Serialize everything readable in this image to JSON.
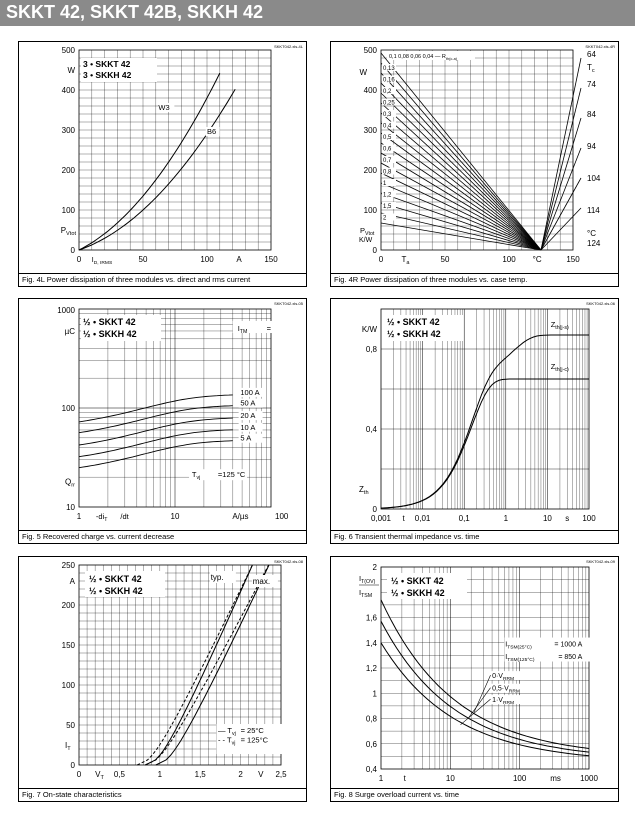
{
  "header": {
    "title": "SKKT 42, SKKT 42B, SKKH 42"
  },
  "panels": [
    {
      "id": "p4l",
      "caption": "Fig. 4L Power dissipation of three modules vs. direct and rms current",
      "file": "SKKT042.xls-4L",
      "legend": [
        "3 • SKKT 42",
        "3 • SKKH 42"
      ],
      "ylabel_unit": "W",
      "ylabel_sym": "P",
      "ylabel_sub": "Vtot",
      "xlabel_sym": "I",
      "xlabel_sub": "D, IRMS",
      "xlabel_unit": "A",
      "xticks": [
        "0",
        "50",
        "100",
        "150"
      ],
      "yticks": [
        "0",
        "100",
        "200",
        "300",
        "400",
        "500"
      ]
    },
    {
      "id": "p4r",
      "caption": "Fig. 4R Power dissipation of three modules vs. case temp.",
      "file": "SKKT042.xls-4R",
      "ylabel_unit": "W",
      "ylabel_sym": "P",
      "ylabel_sub": "Vtot",
      "ylabel_unit2": "K/W",
      "xlabel_sym": "T",
      "xlabel_sub": "a",
      "xlabel_unit": "°C",
      "xticks": [
        "0",
        "50",
        "100",
        "150"
      ],
      "yticks": [
        "0",
        "100",
        "200",
        "300",
        "400",
        "500"
      ],
      "right_ticks": [
        "64",
        "74",
        "84",
        "94",
        "104",
        "114",
        "124"
      ],
      "right_label": "T",
      "right_sub": "c",
      "right_unit": "°C",
      "rth_header": "0,1  0,08  0,06  0,04 — R",
      "rth_sub": "th(c-a)",
      "rth_labels": [
        "0,13",
        "0,16",
        "0,2",
        "0,25",
        "0,3",
        "0,4",
        "0,5",
        "0,6",
        "0,7",
        "0,8",
        "1",
        "1,2",
        "1,5",
        "2"
      ]
    },
    {
      "id": "p5",
      "caption": "Fig. 5 Recovered charge vs. current decrease",
      "file": "SKKT042.xls-05",
      "legend": [
        "½ • SKKT 42",
        "½ • SKKH 42"
      ],
      "ylabel_unit": "µC",
      "ylabel_sym": "Q",
      "ylabel_sub": "rr",
      "xlabel_sym": "-di",
      "xlabel_sub": "T",
      "xlabel_unit": "A/µs",
      "xticks": [
        "1",
        "10",
        "100"
      ],
      "yticks": [
        "10",
        "100",
        "1000"
      ],
      "itm_label": "I",
      "itm_sub": "TM",
      "itm_eq": "=",
      "curves": [
        "100 A",
        "50 A",
        "20 A",
        "10 A",
        "5 A"
      ],
      "tvj": "T",
      "tvj_sub": "vj",
      "tvj_val": "=125 °C"
    },
    {
      "id": "p6",
      "caption": "Fig. 6 Transient thermal impedance vs. time",
      "file": "SKKT042.xls-06",
      "legend": [
        "½ • SKKT 42",
        "½ • SKKH 42"
      ],
      "ylabel_unit": "K/W",
      "ylabel_sym": "Z",
      "ylabel_sub": "th",
      "xlabel_sym": "t",
      "xlabel_unit": "s",
      "xticks": [
        "0,001",
        "0,01",
        "0,1",
        "1",
        "10",
        "100"
      ],
      "yticks": [
        "0",
        "0,4",
        "0,8"
      ],
      "curve1": "Z",
      "curve1_sub": "th(j-s)",
      "curve2": "Z",
      "curve2_sub": "th(j-c)"
    },
    {
      "id": "p7",
      "caption": "Fig. 7 On-state characteristics",
      "file": "SKKT042.xls-08",
      "legend": [
        "½ • SKKT 42",
        "½ • SKKH 42"
      ],
      "ylabel_unit": "A",
      "ylabel_sym": "I",
      "ylabel_sub": "T",
      "xlabel_sym": "V",
      "xlabel_sub": "T",
      "xlabel_unit": "V",
      "xticks": [
        "0",
        "0,5",
        "1",
        "1,5",
        "2",
        "2,5"
      ],
      "yticks": [
        "0",
        "50",
        "100",
        "150",
        "200",
        "250"
      ],
      "typ": "typ.",
      "max": "max.",
      "legend_solid": "— T",
      "legend_solid_sub": "vj",
      "legend_solid_val": " = 25°C",
      "legend_dash": "- - T",
      "legend_dash_sub": "vj",
      "legend_dash_val": " = 125°C"
    },
    {
      "id": "p8",
      "caption": "Fig. 8 Surge overload current vs. time",
      "file": "SKKT042.xls-09",
      "legend": [
        "½ • SKKT 42",
        "½ • SKKH 42"
      ],
      "ylabel_top": "I",
      "ylabel_top_sub": "T(OV)",
      "ylabel_bot": "I",
      "ylabel_bot_sub": "TSM",
      "xlabel_sym": "t",
      "xlabel_unit": "ms",
      "xticks": [
        "1",
        "10",
        "100",
        "1000"
      ],
      "yticks": [
        "0,4",
        "0,6",
        "0,8",
        "1",
        "1,2",
        "1,4",
        "1,6",
        "2"
      ],
      "itsm1": "I",
      "itsm1_sub": "TSM(25°C)",
      "itsm1_val": "= 1000 A",
      "itsm2": "I",
      "itsm2_sub": "TSM(125°C)",
      "itsm2_val": "=  850 A",
      "curves": [
        "0·V",
        "0,5·V",
        "1·V"
      ],
      "curves_sub": "RRM"
    }
  ]
}
